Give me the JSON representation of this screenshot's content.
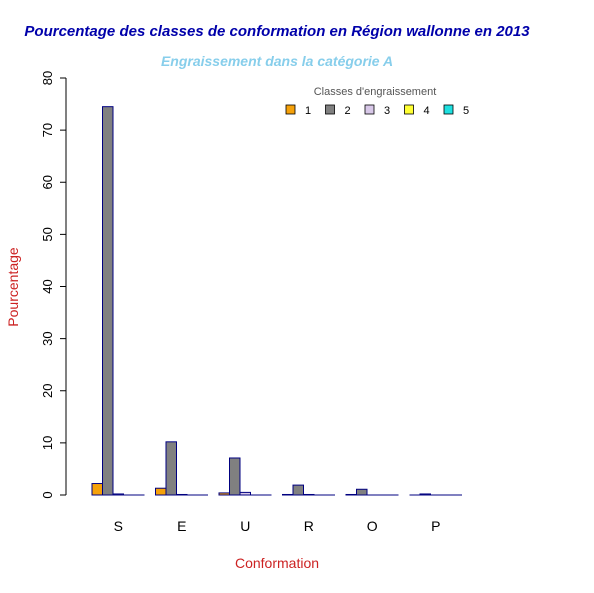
{
  "chart_data": {
    "type": "bar",
    "title": "Pourcentage des classes de conformation en Région wallonne en 2013",
    "subtitle": "Engraissement dans la catégorie A",
    "xlabel": "Conformation",
    "ylabel": "Pourcentage",
    "categories": [
      "S",
      "E",
      "U",
      "R",
      "O",
      "P"
    ],
    "ylim": [
      0,
      80
    ],
    "yticks": [
      0,
      10,
      20,
      30,
      40,
      50,
      60,
      70,
      80
    ],
    "legend": {
      "title": "Classes d'engraissement",
      "position": "top-right",
      "orientation": "horizontal"
    },
    "series": [
      {
        "name": "1",
        "color": "#f5a10a",
        "values": [
          2.2,
          1.3,
          0.4,
          0.1,
          0.1,
          0.0
        ]
      },
      {
        "name": "2",
        "color": "#808080",
        "values": [
          74.5,
          10.2,
          7.1,
          1.9,
          1.1,
          0.2
        ]
      },
      {
        "name": "3",
        "color": "#d8c8e8",
        "values": [
          0.2,
          0.1,
          0.5,
          0.1,
          0.0,
          0.0
        ]
      },
      {
        "name": "4",
        "color": "#ffff33",
        "values": [
          0.0,
          0.0,
          0.0,
          0.0,
          0.0,
          0.0
        ]
      },
      {
        "name": "5",
        "color": "#1ee0e0",
        "values": [
          0.0,
          0.0,
          0.0,
          0.0,
          0.0,
          0.0
        ]
      }
    ],
    "colors": {
      "title": "#0000aa",
      "subtitle": "#87ceeb",
      "axis_label": "#cc2222",
      "bar_border": "#000080"
    }
  }
}
